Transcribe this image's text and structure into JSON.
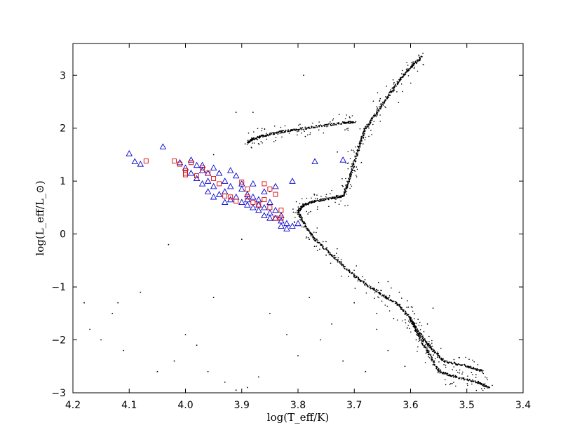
{
  "chart_data": {
    "type": "scatter",
    "title": "",
    "xlabel": "log(T_eff/K)",
    "ylabel": "log(L_eff/L_⊙)",
    "xlim": [
      4.2,
      3.4
    ],
    "ylim": [
      -3.0,
      3.6
    ],
    "x_inverted": true,
    "grid": false,
    "legend": "none",
    "x_ticks": [
      "4.2",
      "4.1",
      "4.0",
      "3.9",
      "3.8",
      "3.7",
      "3.6",
      "3.5",
      "3.4"
    ],
    "y_ticks": [
      "−3",
      "−2",
      "−1",
      "0",
      "1",
      "2",
      "3"
    ],
    "series": [
      {
        "marker": "dot",
        "color": "#000000",
        "description_tracks": [
          [
            [
              3.89,
              1.73
            ],
            [
              3.88,
              1.8
            ],
            [
              3.86,
              1.86
            ],
            [
              3.83,
              1.93
            ],
            [
              3.8,
              1.98
            ],
            [
              3.76,
              2.04
            ],
            [
              3.72,
              2.1
            ],
            [
              3.7,
              2.12
            ]
          ],
          [
            [
              3.8,
              0.42
            ],
            [
              3.79,
              0.55
            ],
            [
              3.77,
              0.62
            ],
            [
              3.74,
              0.68
            ],
            [
              3.72,
              0.72
            ],
            [
              3.71,
              1.0
            ],
            [
              3.7,
              1.35
            ],
            [
              3.69,
              1.7
            ],
            [
              3.68,
              2.0
            ],
            [
              3.66,
              2.3
            ],
            [
              3.64,
              2.6
            ],
            [
              3.62,
              2.9
            ],
            [
              3.6,
              3.15
            ],
            [
              3.58,
              3.35
            ]
          ],
          [
            [
              3.8,
              0.42
            ],
            [
              3.79,
              0.2
            ],
            [
              3.77,
              -0.1
            ],
            [
              3.74,
              -0.4
            ],
            [
              3.71,
              -0.7
            ],
            [
              3.68,
              -0.95
            ],
            [
              3.65,
              -1.15
            ],
            [
              3.62,
              -1.35
            ],
            [
              3.6,
              -1.6
            ],
            [
              3.58,
              -1.95
            ],
            [
              3.56,
              -2.2
            ],
            [
              3.54,
              -2.4
            ],
            [
              3.5,
              -2.5
            ],
            [
              3.47,
              -2.6
            ]
          ],
          [
            [
              3.6,
              -1.6
            ],
            [
              3.59,
              -1.85
            ],
            [
              3.57,
              -2.2
            ],
            [
              3.55,
              -2.6
            ],
            [
              3.52,
              -2.7
            ],
            [
              3.48,
              -2.8
            ],
            [
              3.46,
              -2.9
            ]
          ]
        ],
        "description_scatter": [
          [
            4.18,
            -1.3
          ],
          [
            4.17,
            -1.8
          ],
          [
            4.15,
            -2.0
          ],
          [
            4.13,
            -1.5
          ],
          [
            4.11,
            -2.2
          ],
          [
            4.08,
            -1.1
          ],
          [
            4.05,
            -2.6
          ],
          [
            4.02,
            -2.4
          ],
          [
            4.0,
            -1.9
          ],
          [
            3.98,
            -2.1
          ],
          [
            3.96,
            -2.6
          ],
          [
            3.95,
            -1.2
          ],
          [
            3.93,
            -2.8
          ],
          [
            3.91,
            -2.95
          ],
          [
            3.89,
            -2.9
          ],
          [
            3.87,
            -2.7
          ],
          [
            3.85,
            -1.5
          ],
          [
            3.82,
            -1.9
          ],
          [
            3.8,
            -2.3
          ],
          [
            3.78,
            -1.2
          ],
          [
            3.76,
            -2.0
          ],
          [
            3.74,
            -1.7
          ],
          [
            3.72,
            -2.4
          ],
          [
            3.7,
            -1.3
          ],
          [
            3.68,
            -2.6
          ],
          [
            3.66,
            -1.8
          ],
          [
            3.64,
            -2.2
          ],
          [
            3.63,
            -1.6
          ],
          [
            3.61,
            -2.5
          ],
          [
            3.59,
            -2.0
          ],
          [
            3.57,
            -1.7
          ],
          [
            3.55,
            -2.3
          ],
          [
            3.56,
            -1.4
          ],
          [
            3.62,
            -1.1
          ],
          [
            3.66,
            -1.5
          ],
          [
            3.71,
            -0.8
          ],
          [
            3.75,
            -0.4
          ],
          [
            3.78,
            -0.1
          ],
          [
            3.72,
            0.9
          ],
          [
            3.7,
            1.2
          ],
          [
            3.91,
            2.3
          ],
          [
            3.88,
            2.3
          ],
          [
            3.79,
            3.0
          ],
          [
            4.12,
            -1.3
          ],
          [
            4.03,
            -0.2
          ],
          [
            3.95,
            1.5
          ],
          [
            3.9,
            -0.1
          ],
          [
            3.85,
            0.8
          ],
          [
            3.73,
            1.55
          ],
          [
            3.64,
            -0.9
          ]
        ]
      },
      {
        "marker": "triangle",
        "color": "#0000cc",
        "points": [
          [
            4.1,
            1.52
          ],
          [
            4.09,
            1.37
          ],
          [
            4.08,
            1.32
          ],
          [
            4.04,
            1.65
          ],
          [
            4.01,
            1.35
          ],
          [
            4.0,
            1.25
          ],
          [
            3.99,
            1.15
          ],
          [
            3.98,
            1.05
          ],
          [
            3.97,
            1.2
          ],
          [
            3.97,
            0.95
          ],
          [
            3.96,
            1.0
          ],
          [
            3.96,
            0.8
          ],
          [
            3.95,
            1.25
          ],
          [
            3.95,
            0.9
          ],
          [
            3.94,
            0.75
          ],
          [
            3.93,
            0.8
          ],
          [
            3.93,
            1.0
          ],
          [
            3.92,
            0.65
          ],
          [
            3.92,
            0.9
          ],
          [
            3.91,
            0.7
          ],
          [
            3.91,
            1.1
          ],
          [
            3.9,
            0.6
          ],
          [
            3.9,
            0.85
          ],
          [
            3.89,
            0.55
          ],
          [
            3.89,
            0.75
          ],
          [
            3.88,
            0.5
          ],
          [
            3.88,
            0.7
          ],
          [
            3.87,
            0.45
          ],
          [
            3.87,
            0.65
          ],
          [
            3.86,
            0.5
          ],
          [
            3.86,
            0.35
          ],
          [
            3.85,
            0.4
          ],
          [
            3.85,
            0.6
          ],
          [
            3.84,
            0.3
          ],
          [
            3.84,
            0.45
          ],
          [
            3.83,
            0.25
          ],
          [
            3.83,
            0.35
          ],
          [
            3.82,
            0.2
          ],
          [
            3.82,
            0.1
          ],
          [
            3.81,
            0.15
          ],
          [
            3.8,
            0.2
          ],
          [
            3.97,
            1.3
          ],
          [
            3.96,
            1.15
          ],
          [
            3.94,
            1.15
          ],
          [
            3.92,
            1.2
          ],
          [
            3.9,
            0.95
          ],
          [
            3.88,
            0.95
          ],
          [
            3.86,
            0.8
          ],
          [
            3.84,
            0.9
          ],
          [
            3.77,
            1.37
          ],
          [
            3.72,
            1.4
          ],
          [
            3.81,
            1.0
          ],
          [
            3.95,
            0.7
          ],
          [
            3.93,
            0.6
          ],
          [
            3.89,
            0.65
          ],
          [
            3.87,
            0.55
          ],
          [
            3.85,
            0.3
          ],
          [
            3.83,
            0.15
          ],
          [
            3.99,
            1.4
          ],
          [
            3.98,
            1.3
          ]
        ]
      },
      {
        "marker": "square",
        "color": "#dd0000",
        "points": [
          [
            4.07,
            1.38
          ],
          [
            4.02,
            1.38
          ],
          [
            4.01,
            1.32
          ],
          [
            4.0,
            1.2
          ],
          [
            4.0,
            1.12
          ],
          [
            3.99,
            1.35
          ],
          [
            3.98,
            1.1
          ],
          [
            3.97,
            1.25
          ],
          [
            3.96,
            1.15
          ],
          [
            3.95,
            1.05
          ],
          [
            3.94,
            0.95
          ],
          [
            3.93,
            0.72
          ],
          [
            3.92,
            0.7
          ],
          [
            3.91,
            0.62
          ],
          [
            3.9,
            0.98
          ],
          [
            3.89,
            0.85
          ],
          [
            3.88,
            0.6
          ],
          [
            3.87,
            0.55
          ],
          [
            3.86,
            0.65
          ],
          [
            3.86,
            0.95
          ],
          [
            3.85,
            0.5
          ],
          [
            3.84,
            0.3
          ],
          [
            3.84,
            0.75
          ],
          [
            3.83,
            0.3
          ],
          [
            3.83,
            0.45
          ],
          [
            4.0,
            1.15
          ],
          [
            3.89,
            0.7
          ],
          [
            3.85,
            0.85
          ]
        ]
      }
    ]
  }
}
